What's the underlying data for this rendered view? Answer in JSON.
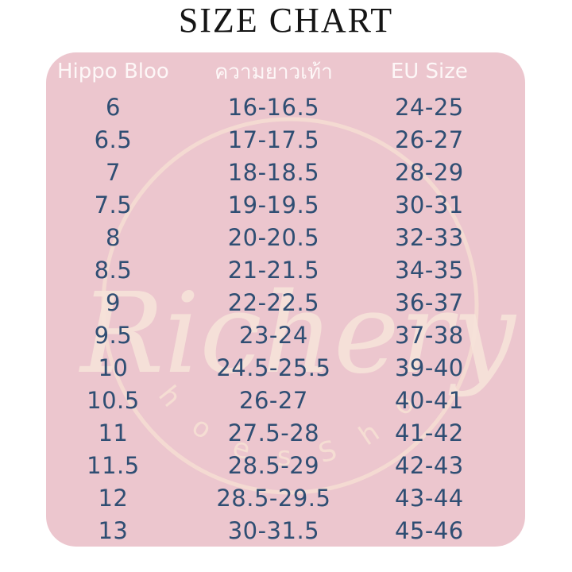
{
  "title": "SIZE CHART",
  "table": {
    "headers": [
      "Hippo Bloo",
      "ความยาวเท้า",
      "EU Size"
    ],
    "rows": [
      [
        "6",
        "16-16.5",
        "24-25"
      ],
      [
        "6.5",
        "17-17.5",
        "26-27"
      ],
      [
        "7",
        "18-18.5",
        "28-29"
      ],
      [
        "7.5",
        "19-19.5",
        "30-31"
      ],
      [
        "8",
        "20-20.5",
        "32-33"
      ],
      [
        "8.5",
        "21-21.5",
        "34-35"
      ],
      [
        "9",
        "22-22.5",
        "36-37"
      ],
      [
        "9.5",
        "23-24",
        "37-38"
      ],
      [
        "10",
        "24.5-25.5",
        "39-40"
      ],
      [
        "10.5",
        "26-27",
        "40-41"
      ],
      [
        "11",
        "27.5-28",
        "41-42"
      ],
      [
        "11.5",
        "28.5-29",
        "42-43"
      ],
      [
        "12",
        "28.5-29.5",
        "43-44"
      ],
      [
        "13",
        "30-31.5",
        "45-46"
      ]
    ]
  },
  "watermark": {
    "script_text": "Richery",
    "arc_text": "S h o e s  S h o p"
  },
  "colors": {
    "panel_pink": "#ecc6ce",
    "text_navy": "#2f4e73",
    "header_white": "#fdf7f7",
    "watermark_cream": "#f6e0d4",
    "title_black": "#151515",
    "background": "#ffffff"
  }
}
